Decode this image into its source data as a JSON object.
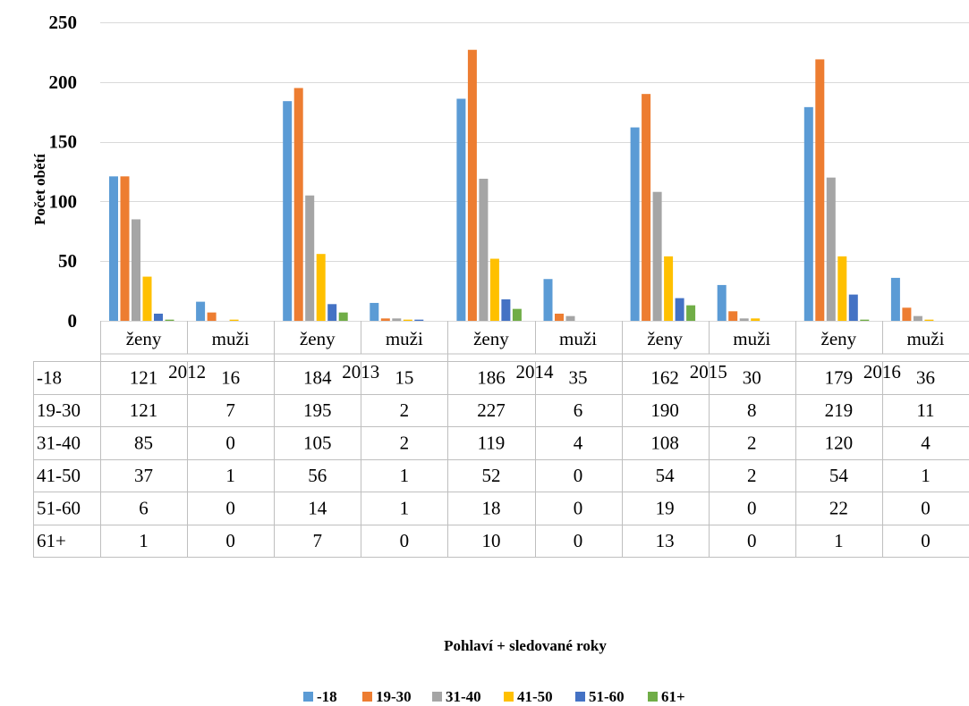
{
  "chart_data": {
    "type": "bar",
    "ylabel": "Počet obětí",
    "xlabel": "Pohlaví + sledované roky",
    "ylim": [
      0,
      250
    ],
    "yticks": [
      0,
      50,
      100,
      150,
      200,
      250
    ],
    "grid": true,
    "legend_position": "bottom",
    "years": [
      "2012",
      "2013",
      "2014",
      "2015",
      "2016"
    ],
    "sexes": [
      "ženy",
      "muži"
    ],
    "categories": [
      "2012 ženy",
      "2012 muži",
      "2013 ženy",
      "2013 muži",
      "2014 ženy",
      "2014 muži",
      "2015 ženy",
      "2015 muži",
      "2016 ženy",
      "2016 muži"
    ],
    "series": [
      {
        "name": "-18",
        "color": "#5B9BD5",
        "values": [
          121,
          16,
          184,
          15,
          186,
          35,
          162,
          30,
          179,
          36
        ]
      },
      {
        "name": "19-30",
        "color": "#ED7D31",
        "values": [
          121,
          7,
          195,
          2,
          227,
          6,
          190,
          8,
          219,
          11
        ]
      },
      {
        "name": "31-40",
        "color": "#A5A5A5",
        "values": [
          85,
          0,
          105,
          2,
          119,
          4,
          108,
          2,
          120,
          4
        ]
      },
      {
        "name": "41-50",
        "color": "#FFC000",
        "values": [
          37,
          1,
          56,
          1,
          52,
          0,
          54,
          2,
          54,
          1
        ]
      },
      {
        "name": "51-60",
        "color": "#4472C4",
        "values": [
          6,
          0,
          14,
          1,
          18,
          0,
          19,
          0,
          22,
          0
        ]
      },
      {
        "name": "61+",
        "color": "#70AD47",
        "values": [
          1,
          0,
          7,
          0,
          10,
          0,
          13,
          0,
          1,
          0
        ]
      }
    ]
  }
}
